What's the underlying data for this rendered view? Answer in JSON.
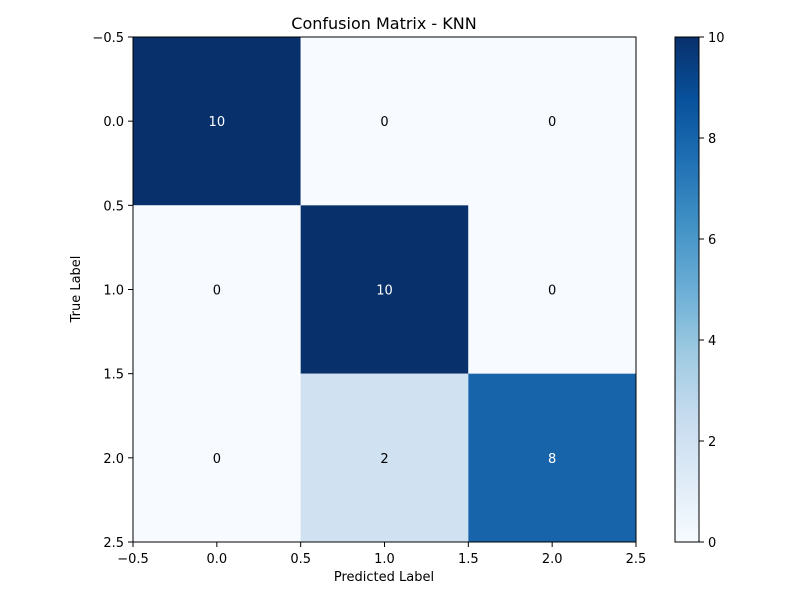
{
  "chart_data": {
    "type": "heatmap",
    "title": "Confusion Matrix - KNN",
    "xlabel": "Predicted Label",
    "ylabel": "True Label",
    "matrix": [
      [
        10,
        0,
        0
      ],
      [
        0,
        10,
        0
      ],
      [
        0,
        2,
        8
      ]
    ],
    "cell_labels": [
      [
        "10",
        "0",
        "0"
      ],
      [
        "0",
        "10",
        "0"
      ],
      [
        "0",
        "2",
        "8"
      ]
    ],
    "xlim": [
      -0.5,
      2.5
    ],
    "ylim": [
      2.5,
      -0.5
    ],
    "xticks": [
      -0.5,
      0.0,
      0.5,
      1.0,
      1.5,
      2.0,
      2.5
    ],
    "xtick_labels": [
      "−0.5",
      "0.0",
      "0.5",
      "1.0",
      "1.5",
      "2.0",
      "2.5"
    ],
    "yticks": [
      -0.5,
      0.0,
      0.5,
      1.0,
      1.5,
      2.0,
      2.5
    ],
    "ytick_labels": [
      "−0.5",
      "0.0",
      "0.5",
      "1.0",
      "1.5",
      "2.0",
      "2.5"
    ],
    "colormap": "Blues",
    "colorbar": {
      "range": [
        0,
        10
      ],
      "ticks": [
        0,
        2,
        4,
        6,
        8,
        10
      ],
      "tick_labels": [
        "0",
        "2",
        "4",
        "6",
        "8",
        "10"
      ]
    },
    "grid": false,
    "colors": {
      "low": "#f7fbff",
      "high": "#08306b",
      "text_light": "#ffffff",
      "text_dark": "#000000"
    }
  }
}
